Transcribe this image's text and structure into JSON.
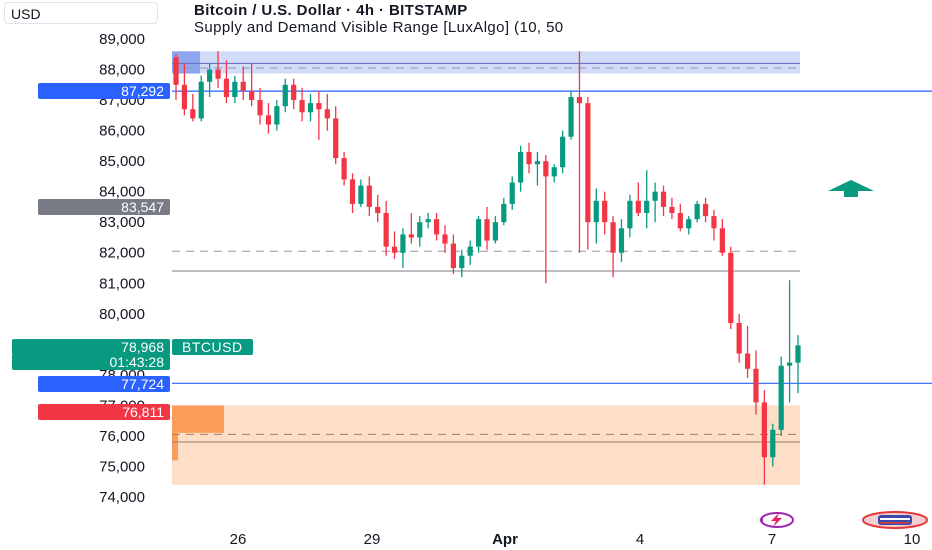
{
  "header": {
    "currency": "USD",
    "title": "Bitcoin / U.S. Dollar · 4h · BITSTAMP",
    "indicator": "Supply and Demand Visible Range [LuxAlgo] (10, 50"
  },
  "colors": {
    "up": "#089981",
    "down": "#f23645",
    "supply_zone": "#c7d2f5",
    "demand_zone": "#fdd9bd",
    "blue_line": "#2962ff",
    "gray_line": "#787b86"
  },
  "price_tags": {
    "level_high": "87,292",
    "level_mid": "83,547",
    "last_price": "78,968",
    "countdown": "01:43:28",
    "level_blue": "77,724",
    "level_low": "76,811",
    "ticker": "BTCUSD"
  },
  "chart_data": {
    "type": "candlestick",
    "y_ticks": [
      "74,000",
      "75,000",
      "76,000",
      "77,000",
      "78,000",
      "79,000",
      "80,000",
      "81,000",
      "82,000",
      "83,000",
      "84,000",
      "85,000",
      "86,000",
      "87,000",
      "88,000",
      "89,000"
    ],
    "x_ticks": [
      "26",
      "29",
      "Apr",
      "4",
      "7",
      "10"
    ],
    "ylim": [
      74000,
      89000
    ],
    "horizontal_levels": [
      87292,
      83547,
      81400,
      77724,
      76811
    ],
    "supply_zone": [
      88000,
      88400
    ],
    "demand_zone": [
      74400,
      77000
    ],
    "candles": [
      [
        88400,
        88500,
        87000,
        87500
      ],
      [
        87500,
        88200,
        86500,
        86700
      ],
      [
        86700,
        87200,
        86300,
        86400
      ],
      [
        86400,
        87800,
        86300,
        87600
      ],
      [
        87600,
        88200,
        87100,
        88000
      ],
      [
        88000,
        88600,
        87400,
        87700
      ],
      [
        87700,
        88300,
        86900,
        87100
      ],
      [
        87100,
        87800,
        86900,
        87600
      ],
      [
        87600,
        88100,
        87000,
        87300
      ],
      [
        87300,
        88200,
        86800,
        87000
      ],
      [
        87000,
        87400,
        86200,
        86500
      ],
      [
        86500,
        86900,
        85900,
        86200
      ],
      [
        86200,
        87000,
        86000,
        86800
      ],
      [
        86800,
        87700,
        86600,
        87500
      ],
      [
        87500,
        87700,
        86700,
        87000
      ],
      [
        87000,
        87400,
        86300,
        86600
      ],
      [
        86600,
        87200,
        86300,
        86900
      ],
      [
        86900,
        87300,
        85700,
        86700
      ],
      [
        86700,
        87200,
        86000,
        86400
      ],
      [
        86400,
        86800,
        84900,
        85100
      ],
      [
        85100,
        85300,
        84200,
        84400
      ],
      [
        84400,
        84600,
        83300,
        83600
      ],
      [
        83600,
        84400,
        83500,
        84200
      ],
      [
        84200,
        84500,
        83200,
        83500
      ],
      [
        83500,
        83900,
        83000,
        83300
      ],
      [
        83300,
        83700,
        81900,
        82200
      ],
      [
        82200,
        82700,
        81800,
        82000
      ],
      [
        82000,
        82800,
        81500,
        82600
      ],
      [
        82600,
        83300,
        82300,
        82500
      ],
      [
        82500,
        83200,
        82200,
        83000
      ],
      [
        83000,
        83300,
        82800,
        83100
      ],
      [
        83100,
        83300,
        82400,
        82600
      ],
      [
        82600,
        82900,
        82000,
        82300
      ],
      [
        82300,
        82600,
        81300,
        81500
      ],
      [
        81500,
        82100,
        81200,
        81900
      ],
      [
        81900,
        82400,
        81600,
        82200
      ],
      [
        82200,
        83200,
        82000,
        83100
      ],
      [
        83100,
        83500,
        82100,
        82400
      ],
      [
        82400,
        83200,
        82300,
        83000
      ],
      [
        83000,
        83800,
        82900,
        83600
      ],
      [
        83600,
        84500,
        83400,
        84300
      ],
      [
        84300,
        85500,
        84000,
        85300
      ],
      [
        85300,
        85600,
        84600,
        84900
      ],
      [
        84900,
        85300,
        84200,
        85000
      ],
      [
        85000,
        85200,
        81000,
        84500
      ],
      [
        84500,
        84900,
        84300,
        84800
      ],
      [
        84800,
        86000,
        84600,
        85800
      ],
      [
        85800,
        87300,
        85700,
        87100
      ],
      [
        87100,
        88600,
        82000,
        86900
      ],
      [
        86900,
        87100,
        82100,
        83000
      ],
      [
        83000,
        84100,
        82300,
        83700
      ],
      [
        83700,
        84000,
        82600,
        83000
      ],
      [
        83000,
        83200,
        81200,
        82000
      ],
      [
        82000,
        83100,
        81700,
        82800
      ],
      [
        82800,
        83900,
        82500,
        83700
      ],
      [
        83700,
        84300,
        83200,
        83300
      ],
      [
        83300,
        84700,
        82800,
        83700
      ],
      [
        83700,
        84300,
        83000,
        84000
      ],
      [
        84000,
        84200,
        83200,
        83500
      ],
      [
        83500,
        83800,
        83100,
        83300
      ],
      [
        83300,
        83600,
        82700,
        82800
      ],
      [
        82800,
        83200,
        82600,
        83100
      ],
      [
        83100,
        83700,
        83000,
        83600
      ],
      [
        83600,
        83800,
        83000,
        83200
      ],
      [
        83200,
        83400,
        82400,
        82800
      ],
      [
        82800,
        83100,
        81900,
        82000
      ],
      [
        82000,
        82200,
        79500,
        79700
      ],
      [
        79700,
        80000,
        78400,
        78700
      ],
      [
        78700,
        79600,
        77900,
        78200
      ],
      [
        78200,
        78800,
        76700,
        77100
      ],
      [
        77100,
        77500,
        74400,
        75300
      ],
      [
        75300,
        76400,
        75000,
        76200
      ],
      [
        76200,
        78600,
        76000,
        78300
      ],
      [
        78300,
        81100,
        77100,
        78400
      ],
      [
        78400,
        79300,
        77400,
        78968
      ]
    ]
  }
}
